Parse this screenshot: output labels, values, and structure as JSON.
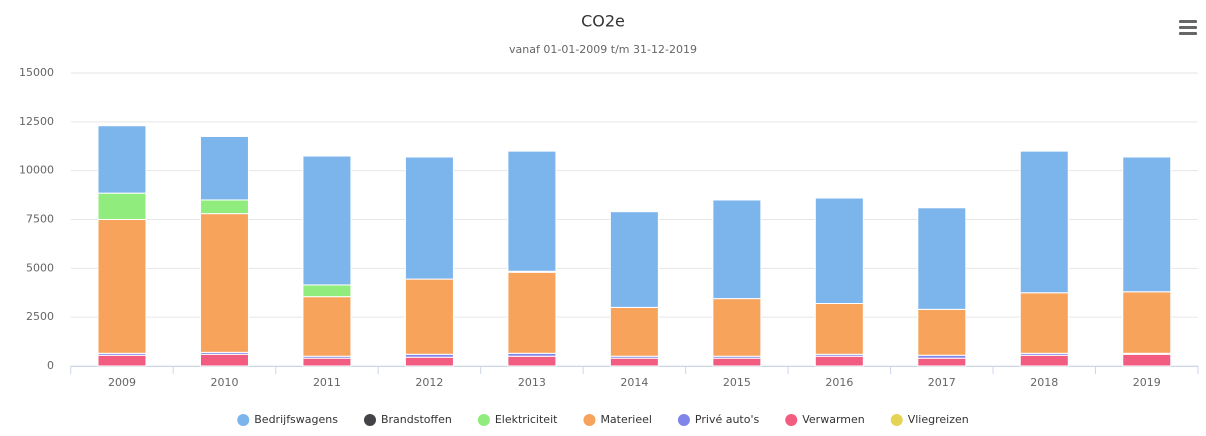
{
  "chart_data": {
    "type": "stacked_bar",
    "title": "CO2e",
    "subtitle": "vanaf 01-01-2009 t/m 31-12-2019",
    "categories": [
      "2009",
      "2010",
      "2011",
      "2012",
      "2013",
      "2014",
      "2015",
      "2016",
      "2017",
      "2018",
      "2019"
    ],
    "series": [
      {
        "name": "Bedrijfswagens",
        "color": "#7cb5ec",
        "values": [
          3450,
          3250,
          6600,
          6250,
          6150,
          4900,
          5050,
          5400,
          5200,
          7250,
          6900
        ]
      },
      {
        "name": "Brandstoffen",
        "color": "#434348",
        "values": [
          0,
          0,
          0,
          0,
          0,
          0,
          0,
          0,
          0,
          0,
          0
        ]
      },
      {
        "name": "Elektriciteit",
        "color": "#90ed7d",
        "values": [
          1350,
          700,
          600,
          0,
          50,
          0,
          0,
          0,
          0,
          0,
          0
        ]
      },
      {
        "name": "Materieel",
        "color": "#f7a35c",
        "values": [
          6850,
          7100,
          3050,
          3850,
          4150,
          2500,
          2950,
          2600,
          2350,
          3100,
          3150
        ]
      },
      {
        "name": "Privé auto's",
        "color": "#8085e9",
        "values": [
          100,
          100,
          100,
          150,
          150,
          100,
          100,
          100,
          150,
          100,
          50
        ]
      },
      {
        "name": "Verwarmen",
        "color": "#f15c80",
        "values": [
          550,
          600,
          400,
          450,
          500,
          400,
          400,
          500,
          400,
          550,
          600
        ]
      },
      {
        "name": "Vliegreizen",
        "color": "#e4d354",
        "values": [
          0,
          0,
          0,
          0,
          0,
          0,
          0,
          0,
          0,
          0,
          0
        ]
      }
    ],
    "ylim": [
      0,
      15000
    ],
    "yticks": [
      0,
      2500,
      5000,
      7500,
      10000,
      12500,
      15000
    ],
    "grid": true,
    "legend": "bottom"
  }
}
